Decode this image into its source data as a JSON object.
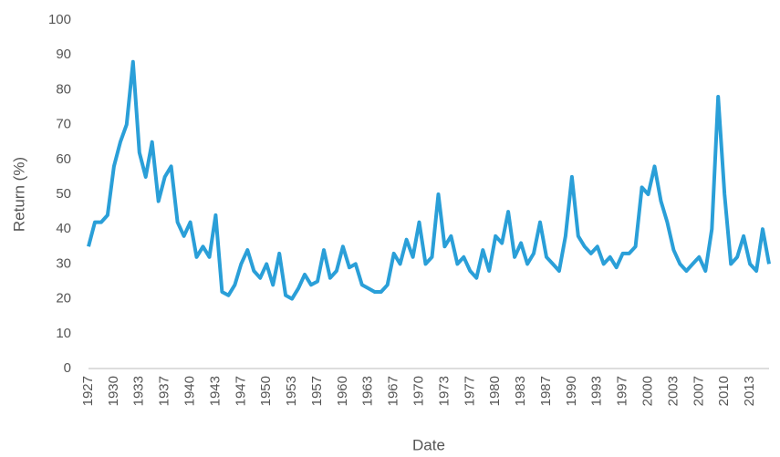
{
  "chart_data": {
    "type": "line",
    "x_label": "Date",
    "y_label": "Return (%)",
    "categories": [
      "1927",
      null,
      null,
      null,
      "1930",
      null,
      null,
      null,
      "1933",
      null,
      null,
      null,
      "1937",
      null,
      null,
      null,
      "1940",
      null,
      null,
      null,
      "1943",
      null,
      null,
      null,
      "1947",
      null,
      null,
      null,
      "1950",
      null,
      null,
      null,
      "1953",
      null,
      null,
      null,
      "1957",
      null,
      null,
      null,
      "1960",
      null,
      null,
      null,
      "1963",
      null,
      null,
      null,
      "1967",
      null,
      null,
      null,
      "1970",
      null,
      null,
      null,
      "1973",
      null,
      null,
      null,
      "1977",
      null,
      null,
      null,
      "1980",
      null,
      null,
      null,
      "1983",
      null,
      null,
      null,
      "1987",
      null,
      null,
      null,
      "1990",
      null,
      null,
      null,
      "1993",
      null,
      null,
      null,
      "1997",
      null,
      null,
      null,
      "2000",
      null,
      null,
      null,
      "2003",
      null,
      null,
      null,
      "2007",
      null,
      null,
      null,
      "2010",
      null,
      null,
      null,
      "2013",
      null,
      null,
      null
    ],
    "values": [
      35,
      42,
      42,
      44,
      58,
      65,
      70,
      88,
      62,
      55,
      65,
      48,
      55,
      58,
      42,
      38,
      42,
      32,
      35,
      32,
      44,
      22,
      21,
      24,
      30,
      34,
      28,
      26,
      30,
      24,
      33,
      21,
      20,
      23,
      27,
      24,
      25,
      34,
      26,
      28,
      35,
      29,
      30,
      24,
      23,
      22,
      22,
      24,
      33,
      30,
      37,
      32,
      42,
      30,
      32,
      50,
      35,
      38,
      30,
      32,
      28,
      26,
      34,
      28,
      38,
      36,
      45,
      32,
      36,
      30,
      33,
      42,
      32,
      30,
      28,
      38,
      55,
      38,
      35,
      33,
      35,
      30,
      32,
      29,
      33,
      33,
      35,
      52,
      50,
      58,
      48,
      42,
      34,
      30,
      28,
      30,
      32,
      28,
      40,
      78,
      50,
      30,
      32,
      38,
      30,
      28,
      40,
      30
    ],
    "color": "#2a9fd8",
    "ylim": [
      0,
      100
    ],
    "yticks": [
      0,
      10,
      20,
      30,
      40,
      50,
      60,
      70,
      80,
      90,
      100
    ],
    "grid": false
  }
}
